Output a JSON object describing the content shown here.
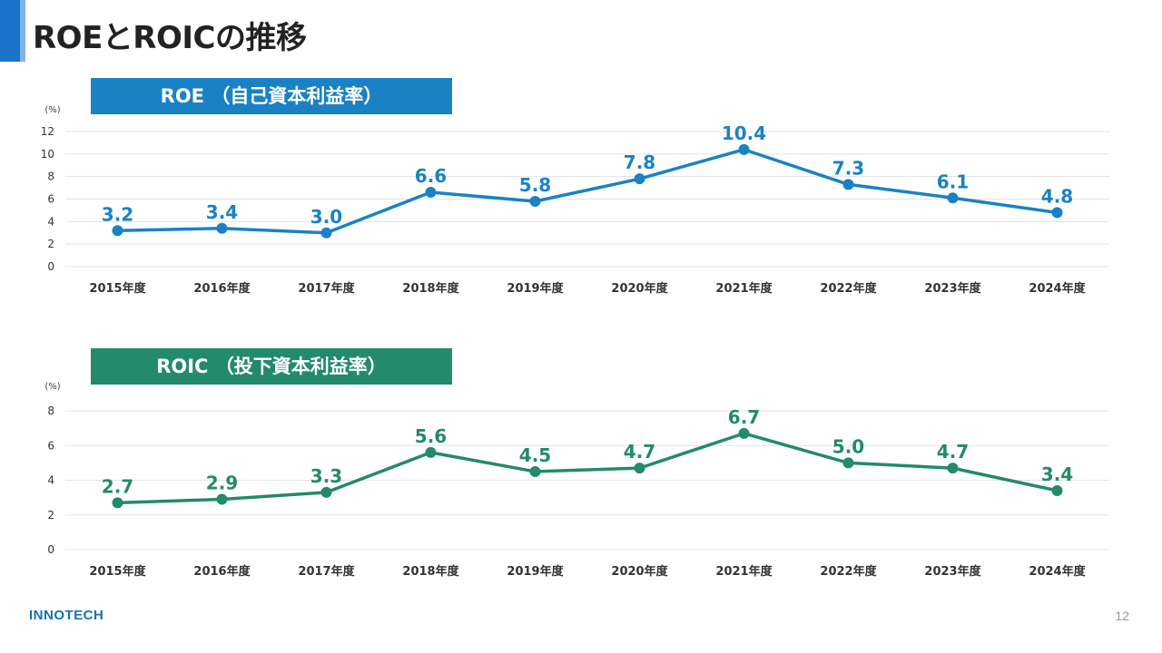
{
  "page": {
    "title": "ROEとROICの推移",
    "page_number": "12",
    "logo": "INNOTECH"
  },
  "colors": {
    "roe": "#1a82c4",
    "roic": "#238a6c",
    "grid": "#e3e3e3"
  },
  "chart_data": [
    {
      "type": "line",
      "banner": "ROE （自己資本利益率）",
      "unit": "(%)",
      "categories": [
        "2015年度",
        "2016年度",
        "2017年度",
        "2018年度",
        "2019年度",
        "2020年度",
        "2021年度",
        "2022年度",
        "2023年度",
        "2024年度"
      ],
      "values": [
        3.2,
        3.4,
        3.0,
        6.6,
        5.8,
        7.8,
        10.4,
        7.3,
        6.1,
        4.8
      ],
      "labels": [
        "3.2",
        "3.4",
        "3.0",
        "6.6",
        "5.8",
        "7.8",
        "10.4",
        "7.3",
        "6.1",
        "4.8"
      ],
      "yticks": [
        0,
        2,
        4,
        6,
        8,
        10,
        12
      ],
      "ylim": [
        0,
        12
      ],
      "grid": true
    },
    {
      "type": "line",
      "banner": "ROIC （投下資本利益率）",
      "unit": "(%)",
      "categories": [
        "2015年度",
        "2016年度",
        "2017年度",
        "2018年度",
        "2019年度",
        "2020年度",
        "2021年度",
        "2022年度",
        "2023年度",
        "2024年度"
      ],
      "values": [
        2.7,
        2.9,
        3.3,
        5.6,
        4.5,
        4.7,
        6.7,
        5.0,
        4.7,
        3.4
      ],
      "labels": [
        "2.7",
        "2.9",
        "3.3",
        "5.6",
        "4.5",
        "4.7",
        "6.7",
        "5.0",
        "4.7",
        "3.4"
      ],
      "yticks": [
        0,
        2,
        4,
        6,
        8
      ],
      "ylim": [
        0,
        8
      ],
      "grid": true
    }
  ]
}
